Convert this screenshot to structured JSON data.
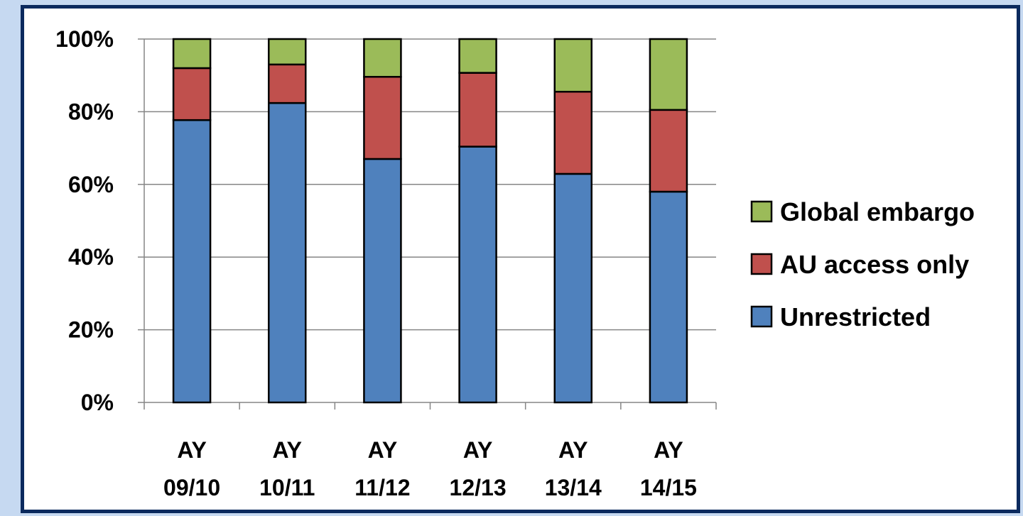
{
  "chart_data": {
    "type": "bar",
    "stacked": true,
    "percent_stacked": true,
    "categories": [
      [
        "AY",
        "09/10"
      ],
      [
        "AY",
        "10/11"
      ],
      [
        "AY",
        "11/12"
      ],
      [
        "AY",
        "12/13"
      ],
      [
        "AY",
        "13/14"
      ],
      [
        "AY",
        "14/15"
      ]
    ],
    "series": [
      {
        "name": "Unrestricted",
        "color": "#4f81bd",
        "values": [
          77.7,
          82.4,
          67.0,
          70.4,
          62.9,
          58.0
        ]
      },
      {
        "name": "AU access only",
        "color": "#c0504d",
        "values": [
          14.3,
          10.6,
          22.6,
          20.3,
          22.6,
          22.5
        ]
      },
      {
        "name": "Global embargo",
        "color": "#9bbb59",
        "values": [
          8.0,
          7.0,
          10.4,
          9.3,
          14.5,
          19.5
        ]
      }
    ],
    "yticks": [
      "0%",
      "20%",
      "40%",
      "60%",
      "80%",
      "100%"
    ],
    "ylim": [
      0,
      100
    ],
    "grid": true,
    "legend_position": "right",
    "legend_order": [
      "Global embargo",
      "AU access only",
      "Unrestricted"
    ]
  }
}
